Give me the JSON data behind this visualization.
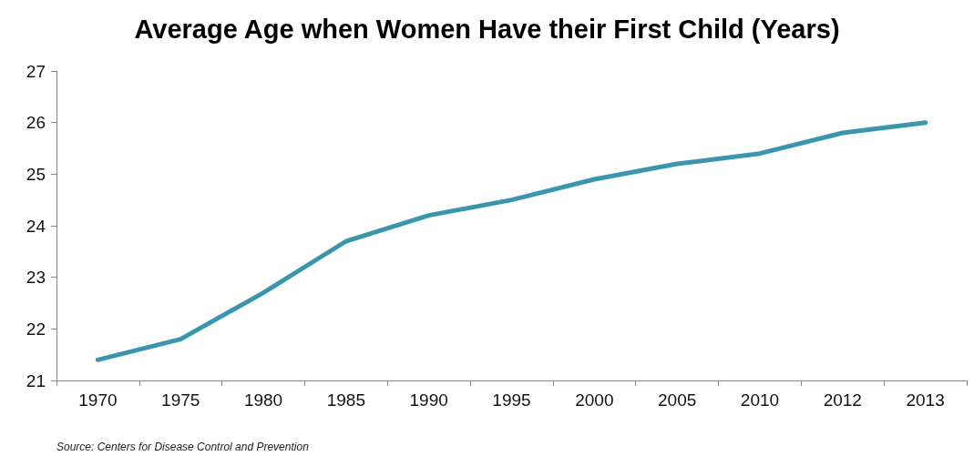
{
  "chart_data": {
    "type": "line",
    "title": "Average Age when Women Have their First Child (Years)",
    "categories": [
      "1970",
      "1975",
      "1980",
      "1985",
      "1990",
      "1995",
      "2000",
      "2005",
      "2010",
      "2012",
      "2013"
    ],
    "values": [
      21.4,
      21.8,
      22.7,
      23.7,
      24.2,
      24.5,
      24.9,
      25.2,
      25.4,
      25.8,
      26.0
    ],
    "color": "#3b96ad",
    "ylim": [
      21,
      27
    ],
    "yticks": [
      21,
      22,
      23,
      24,
      25,
      26,
      27
    ],
    "grid": false,
    "marker": "none",
    "line_style": "solid",
    "annotations": [
      "Source: Centers for Disease Control and Prevention"
    ]
  }
}
